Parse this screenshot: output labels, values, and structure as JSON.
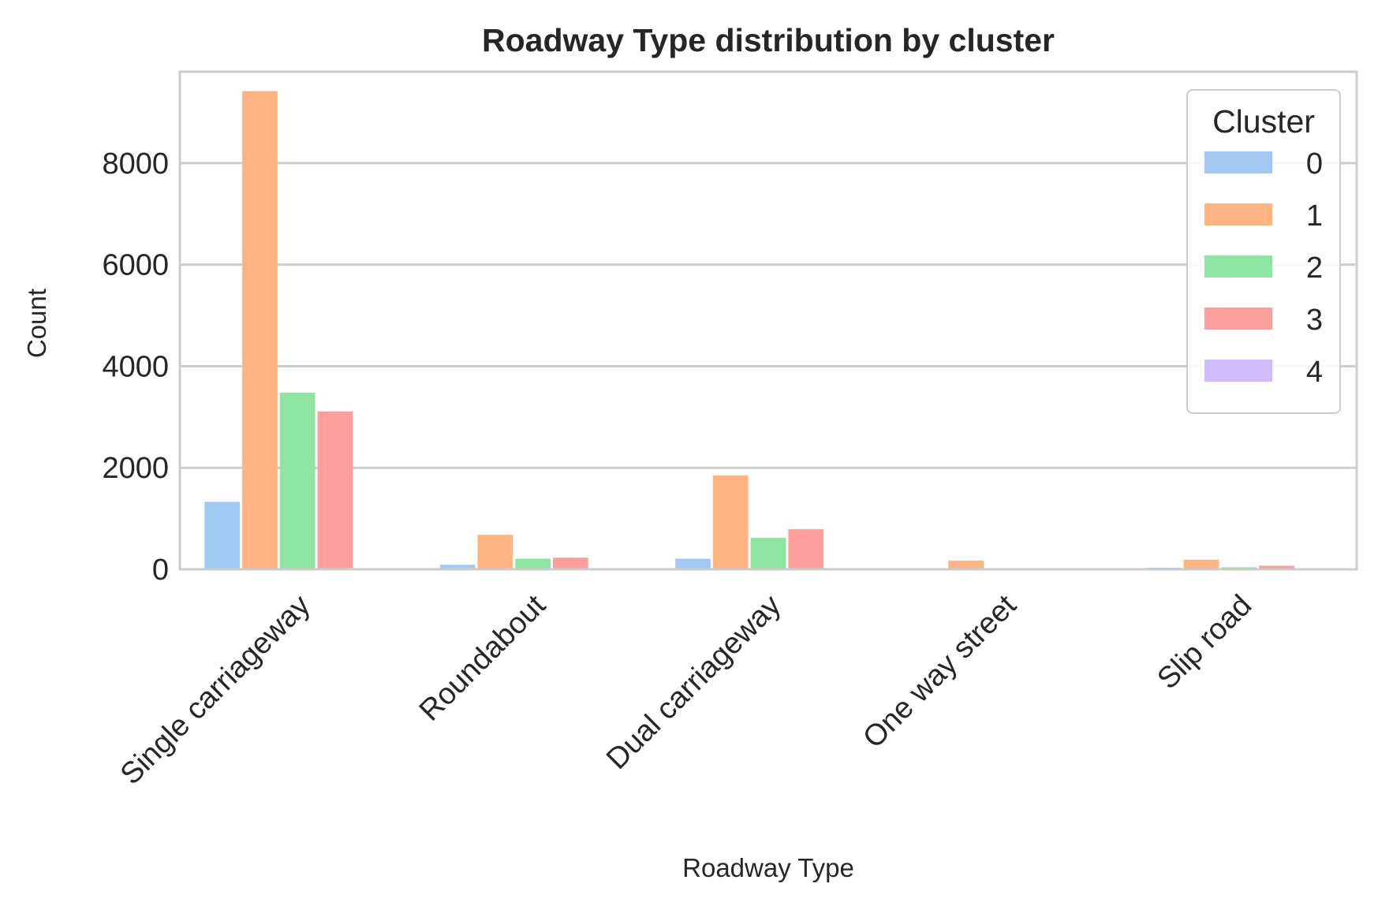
{
  "chart_data": {
    "type": "bar",
    "title": "Roadway Type distribution by cluster",
    "xlabel": "Roadway Type",
    "ylabel": "Count",
    "ylim": [
      0,
      9800
    ],
    "yticks": [
      0,
      2000,
      4000,
      6000,
      8000
    ],
    "grid": true,
    "legend": {
      "title": "Cluster",
      "placement": "top-right"
    },
    "categories": [
      "Single carriageway",
      "Roundabout",
      "Dual carriageway",
      "One way street",
      "Slip road"
    ],
    "series": [
      {
        "name": "0",
        "color": "#a1c9f4",
        "values": [
          1330,
          90,
          210,
          15,
          30
        ]
      },
      {
        "name": "1",
        "color": "#ffb482",
        "values": [
          9420,
          680,
          1850,
          170,
          190
        ]
      },
      {
        "name": "2",
        "color": "#8de5a1",
        "values": [
          3480,
          210,
          620,
          10,
          40
        ]
      },
      {
        "name": "3",
        "color": "#ff9f9b",
        "values": [
          3110,
          230,
          790,
          20,
          70
        ]
      },
      {
        "name": "4",
        "color": "#d0bbff",
        "values": [
          5,
          2,
          5,
          2,
          3
        ]
      }
    ]
  }
}
